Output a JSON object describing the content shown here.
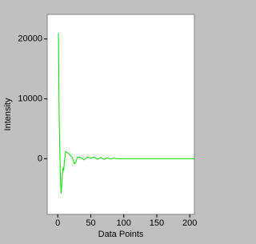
{
  "chart_data": {
    "type": "line",
    "x_label": "Data Points",
    "y_label": "Intensity",
    "xlim": [
      -16,
      207
    ],
    "ylim": [
      -9300,
      24100
    ],
    "xticks": [
      0,
      50,
      100,
      150,
      200
    ],
    "yticks": [
      0,
      10000,
      20000
    ],
    "series": [
      {
        "color": "#00e000",
        "x": [
          1,
          1.5,
          2,
          3,
          4,
          5,
          6,
          7,
          8,
          9,
          10,
          12,
          15,
          18,
          22,
          25,
          27,
          30,
          35,
          40,
          45,
          50,
          55,
          60,
          65,
          70,
          75,
          80,
          85,
          90,
          95,
          100,
          150,
          207
        ],
        "values": [
          21000,
          16000,
          8000,
          2000,
          -3000,
          -5800,
          -4500,
          -2500,
          -1500,
          -2000,
          -500,
          1200,
          1000,
          700,
          200,
          -800,
          -700,
          300,
          200,
          -200,
          300,
          100,
          300,
          -100,
          200,
          -100,
          150,
          -50,
          100,
          0,
          0,
          0,
          0,
          0
        ]
      }
    ]
  }
}
